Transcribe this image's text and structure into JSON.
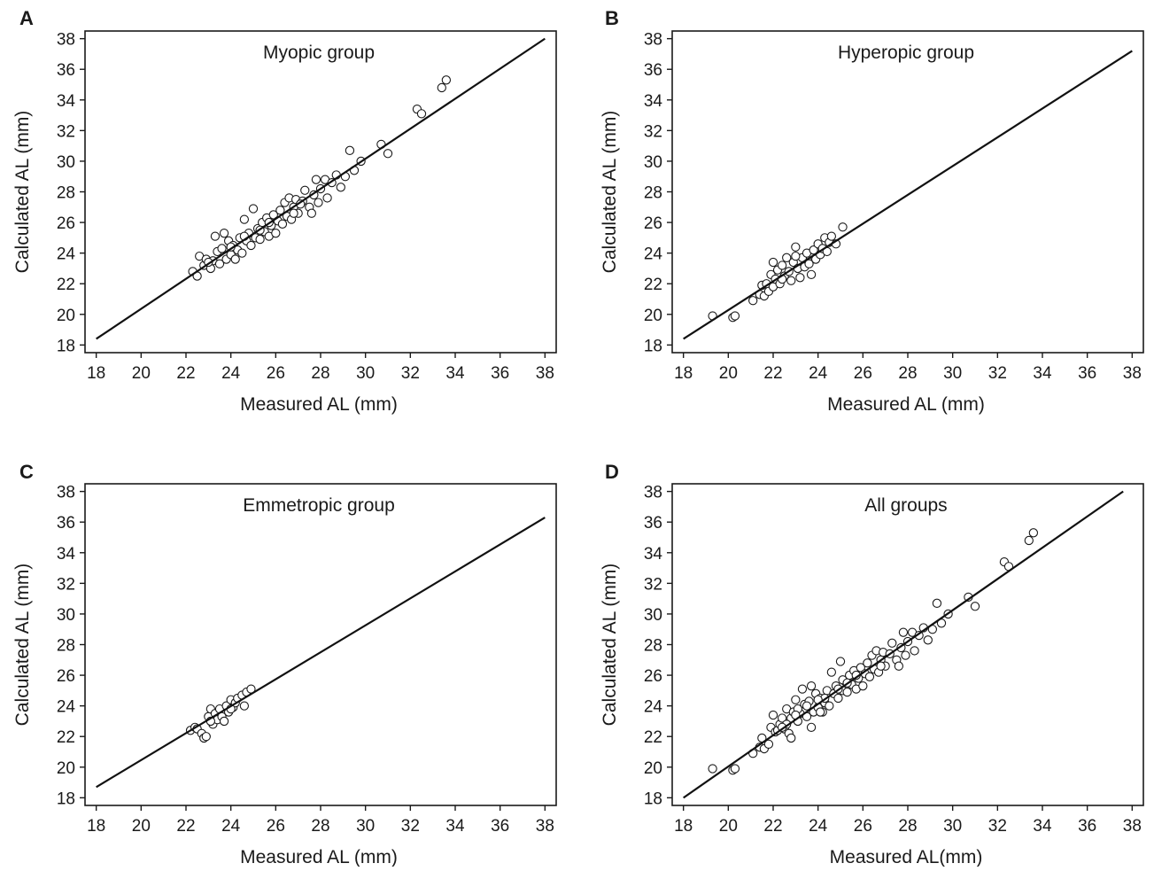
{
  "chart_data": [
    {
      "panel": "A",
      "type": "scatter",
      "title": "Myopic group",
      "xlabel": "Measured AL (mm)",
      "ylabel": "Calculated AL (mm)",
      "xlim": [
        17.5,
        38.5
      ],
      "ylim": [
        17.5,
        38.5
      ],
      "xticks": [
        "18",
        "20",
        "22",
        "24",
        "26",
        "28",
        "30",
        "32",
        "34",
        "36",
        "38"
      ],
      "yticks": [
        "18",
        "20",
        "22",
        "24",
        "26",
        "28",
        "30",
        "32",
        "34",
        "36",
        "38"
      ],
      "fit_line": [
        [
          18,
          18.4
        ],
        [
          38,
          38.0
        ]
      ],
      "points": [
        [
          22.3,
          22.8
        ],
        [
          22.5,
          22.5
        ],
        [
          22.6,
          23.8
        ],
        [
          22.8,
          23.2
        ],
        [
          22.9,
          23.6
        ],
        [
          23.1,
          23.0
        ],
        [
          23.2,
          23.5
        ],
        [
          23.3,
          25.1
        ],
        [
          23.4,
          24.1
        ],
        [
          23.5,
          23.3
        ],
        [
          23.6,
          24.3
        ],
        [
          23.7,
          25.3
        ],
        [
          23.8,
          23.6
        ],
        [
          23.9,
          24.8
        ],
        [
          24.0,
          23.9
        ],
        [
          24.1,
          24.5
        ],
        [
          24.2,
          23.6
        ],
        [
          24.3,
          24.2
        ],
        [
          24.4,
          25.0
        ],
        [
          24.5,
          24.0
        ],
        [
          24.6,
          26.2
        ],
        [
          24.7,
          24.8
        ],
        [
          24.8,
          25.3
        ],
        [
          24.9,
          24.5
        ],
        [
          25.0,
          26.9
        ],
        [
          25.1,
          25.0
        ],
        [
          25.2,
          25.6
        ],
        [
          25.3,
          24.9
        ],
        [
          25.4,
          26.0
        ],
        [
          25.5,
          25.4
        ],
        [
          25.6,
          26.3
        ],
        [
          25.7,
          25.1
        ],
        [
          25.8,
          25.8
        ],
        [
          25.9,
          26.5
        ],
        [
          26.0,
          25.3
        ],
        [
          26.1,
          26.1
        ],
        [
          26.2,
          26.8
        ],
        [
          26.3,
          25.9
        ],
        [
          26.4,
          27.3
        ],
        [
          26.5,
          26.4
        ],
        [
          26.6,
          27.6
        ],
        [
          26.7,
          26.2
        ],
        [
          26.8,
          27.0
        ],
        [
          26.9,
          27.5
        ],
        [
          27.0,
          26.6
        ],
        [
          27.2,
          27.4
        ],
        [
          27.3,
          28.1
        ],
        [
          27.5,
          27.0
        ],
        [
          27.6,
          26.6
        ],
        [
          27.7,
          27.8
        ],
        [
          27.8,
          28.8
        ],
        [
          27.9,
          27.3
        ],
        [
          28.0,
          28.2
        ],
        [
          28.2,
          28.8
        ],
        [
          28.3,
          27.6
        ],
        [
          28.5,
          28.6
        ],
        [
          28.7,
          29.1
        ],
        [
          28.9,
          28.3
        ],
        [
          29.1,
          29.0
        ],
        [
          29.3,
          30.7
        ],
        [
          29.5,
          29.4
        ],
        [
          29.8,
          30.0
        ],
        [
          30.7,
          31.1
        ],
        [
          31.0,
          30.5
        ],
        [
          32.3,
          33.4
        ],
        [
          32.5,
          33.1
        ],
        [
          33.4,
          34.8
        ],
        [
          33.6,
          35.3
        ],
        [
          24.0,
          24.4
        ],
        [
          25.7,
          26.0
        ],
        [
          26.8,
          26.6
        ],
        [
          24.6,
          25.1
        ],
        [
          23.0,
          23.4
        ],
        [
          25.3,
          25.5
        ],
        [
          27.1,
          27.2
        ]
      ]
    },
    {
      "panel": "B",
      "type": "scatter",
      "title": "Hyperopic group",
      "xlabel": "Measured AL (mm)",
      "ylabel": "Calculated AL (mm)",
      "xlim": [
        17.5,
        38.5
      ],
      "ylim": [
        17.5,
        38.5
      ],
      "xticks": [
        "18",
        "20",
        "22",
        "24",
        "26",
        "28",
        "30",
        "32",
        "34",
        "36",
        "38"
      ],
      "yticks": [
        "18",
        "20",
        "22",
        "24",
        "26",
        "28",
        "30",
        "32",
        "34",
        "36",
        "38"
      ],
      "fit_line": [
        [
          18,
          18.4
        ],
        [
          38,
          37.2
        ]
      ],
      "points": [
        [
          19.3,
          19.9
        ],
        [
          20.2,
          19.8
        ],
        [
          20.3,
          19.9
        ],
        [
          21.1,
          20.9
        ],
        [
          21.4,
          21.3
        ],
        [
          21.5,
          21.9
        ],
        [
          21.6,
          21.2
        ],
        [
          21.7,
          22.0
        ],
        [
          21.8,
          21.5
        ],
        [
          21.9,
          22.6
        ],
        [
          22.0,
          21.8
        ],
        [
          22.0,
          23.4
        ],
        [
          22.1,
          22.3
        ],
        [
          22.2,
          22.9
        ],
        [
          22.3,
          22.0
        ],
        [
          22.4,
          23.2
        ],
        [
          22.5,
          22.5
        ],
        [
          22.6,
          23.7
        ],
        [
          22.7,
          22.8
        ],
        [
          22.8,
          22.2
        ],
        [
          22.9,
          23.4
        ],
        [
          23.0,
          24.4
        ],
        [
          23.1,
          23.0
        ],
        [
          23.2,
          22.4
        ],
        [
          23.3,
          23.7
        ],
        [
          23.4,
          23.1
        ],
        [
          23.5,
          24.0
        ],
        [
          23.6,
          23.4
        ],
        [
          23.7,
          22.6
        ],
        [
          23.8,
          24.2
        ],
        [
          23.9,
          23.6
        ],
        [
          24.0,
          24.6
        ],
        [
          24.1,
          23.9
        ],
        [
          24.2,
          24.3
        ],
        [
          24.3,
          25.0
        ],
        [
          24.4,
          24.1
        ],
        [
          24.5,
          24.7
        ],
        [
          24.6,
          25.1
        ],
        [
          24.8,
          24.6
        ],
        [
          25.1,
          25.7
        ],
        [
          22.4,
          22.3
        ],
        [
          23.0,
          23.8
        ],
        [
          23.6,
          23.3
        ]
      ]
    },
    {
      "panel": "C",
      "type": "scatter",
      "title": "Emmetropic group",
      "xlabel": "Measured AL (mm)",
      "ylabel": "Calculated AL (mm)",
      "xlim": [
        17.5,
        38.5
      ],
      "ylim": [
        17.5,
        38.5
      ],
      "xticks": [
        "18",
        "20",
        "22",
        "24",
        "26",
        "28",
        "30",
        "32",
        "34",
        "36",
        "38"
      ],
      "yticks": [
        "18",
        "20",
        "22",
        "24",
        "26",
        "28",
        "30",
        "32",
        "34",
        "36",
        "38"
      ],
      "fit_line": [
        [
          18,
          18.7
        ],
        [
          38,
          36.3
        ]
      ],
      "points": [
        [
          22.2,
          22.4
        ],
        [
          22.4,
          22.6
        ],
        [
          22.5,
          22.5
        ],
        [
          22.7,
          22.2
        ],
        [
          22.8,
          21.9
        ],
        [
          22.9,
          22.0
        ],
        [
          23.0,
          23.3
        ],
        [
          23.1,
          23.8
        ],
        [
          23.2,
          22.8
        ],
        [
          23.3,
          23.5
        ],
        [
          23.4,
          23.1
        ],
        [
          23.5,
          23.8
        ],
        [
          23.6,
          23.3
        ],
        [
          23.7,
          23.0
        ],
        [
          23.8,
          24.0
        ],
        [
          23.9,
          23.6
        ],
        [
          24.0,
          24.4
        ],
        [
          24.1,
          23.9
        ],
        [
          24.2,
          24.2
        ],
        [
          24.3,
          24.5
        ],
        [
          24.5,
          24.7
        ],
        [
          24.6,
          24.0
        ],
        [
          24.7,
          24.9
        ],
        [
          24.9,
          25.1
        ],
        [
          23.1,
          23.0
        ],
        [
          24.0,
          23.8
        ]
      ]
    },
    {
      "panel": "D",
      "type": "scatter",
      "title": "All groups",
      "xlabel": "Measured AL(mm)",
      "ylabel": "Calculated AL (mm)",
      "xlim": [
        17.5,
        38.5
      ],
      "ylim": [
        17.5,
        38.5
      ],
      "xticks": [
        "18",
        "20",
        "22",
        "24",
        "26",
        "28",
        "30",
        "32",
        "34",
        "36",
        "38"
      ],
      "yticks": [
        "18",
        "20",
        "22",
        "24",
        "26",
        "28",
        "30",
        "32",
        "34",
        "36",
        "38"
      ],
      "fit_line": [
        [
          18,
          18.0
        ],
        [
          37.6,
          38.0
        ]
      ],
      "points": [
        [
          19.3,
          19.9
        ],
        [
          20.2,
          19.8
        ],
        [
          20.3,
          19.9
        ],
        [
          21.1,
          20.9
        ],
        [
          21.4,
          21.3
        ],
        [
          21.5,
          21.9
        ],
        [
          21.6,
          21.2
        ],
        [
          21.8,
          21.5
        ],
        [
          21.9,
          22.6
        ],
        [
          22.0,
          23.4
        ],
        [
          22.1,
          22.3
        ],
        [
          22.2,
          22.4
        ],
        [
          22.3,
          22.8
        ],
        [
          22.4,
          23.2
        ],
        [
          22.5,
          22.5
        ],
        [
          22.6,
          23.8
        ],
        [
          22.7,
          22.2
        ],
        [
          22.8,
          23.2
        ],
        [
          22.9,
          23.6
        ],
        [
          23.0,
          24.4
        ],
        [
          23.1,
          23.0
        ],
        [
          23.2,
          23.5
        ],
        [
          23.3,
          25.1
        ],
        [
          23.4,
          24.1
        ],
        [
          23.5,
          23.3
        ],
        [
          23.6,
          24.3
        ],
        [
          23.7,
          25.3
        ],
        [
          23.8,
          23.6
        ],
        [
          23.9,
          24.8
        ],
        [
          24.0,
          23.9
        ],
        [
          24.1,
          24.5
        ],
        [
          24.2,
          23.6
        ],
        [
          24.3,
          24.2
        ],
        [
          24.4,
          25.0
        ],
        [
          24.5,
          24.0
        ],
        [
          24.6,
          26.2
        ],
        [
          24.7,
          24.8
        ],
        [
          24.8,
          25.3
        ],
        [
          24.9,
          24.5
        ],
        [
          25.0,
          26.9
        ],
        [
          25.1,
          25.0
        ],
        [
          25.2,
          25.6
        ],
        [
          25.3,
          24.9
        ],
        [
          25.4,
          26.0
        ],
        [
          25.5,
          25.4
        ],
        [
          25.6,
          26.3
        ],
        [
          25.7,
          25.1
        ],
        [
          25.8,
          25.8
        ],
        [
          25.9,
          26.5
        ],
        [
          26.0,
          25.3
        ],
        [
          26.1,
          26.1
        ],
        [
          26.2,
          26.8
        ],
        [
          26.3,
          25.9
        ],
        [
          26.4,
          27.3
        ],
        [
          26.5,
          26.4
        ],
        [
          26.6,
          27.6
        ],
        [
          26.7,
          26.2
        ],
        [
          26.8,
          27.0
        ],
        [
          26.9,
          27.5
        ],
        [
          27.0,
          26.6
        ],
        [
          27.2,
          27.4
        ],
        [
          27.3,
          28.1
        ],
        [
          27.5,
          27.0
        ],
        [
          27.6,
          26.6
        ],
        [
          27.7,
          27.8
        ],
        [
          27.8,
          28.8
        ],
        [
          27.9,
          27.3
        ],
        [
          28.0,
          28.2
        ],
        [
          28.2,
          28.8
        ],
        [
          28.3,
          27.6
        ],
        [
          28.5,
          28.6
        ],
        [
          28.7,
          29.1
        ],
        [
          28.9,
          28.3
        ],
        [
          29.1,
          29.0
        ],
        [
          29.3,
          30.7
        ],
        [
          29.5,
          29.4
        ],
        [
          29.8,
          30.0
        ],
        [
          30.7,
          31.1
        ],
        [
          31.0,
          30.5
        ],
        [
          32.3,
          33.4
        ],
        [
          32.5,
          33.1
        ],
        [
          33.4,
          34.8
        ],
        [
          33.6,
          35.3
        ],
        [
          22.8,
          21.9
        ],
        [
          23.1,
          23.8
        ],
        [
          23.7,
          22.6
        ],
        [
          24.3,
          24.5
        ],
        [
          24.9,
          25.1
        ],
        [
          22.6,
          22.8
        ],
        [
          23.5,
          24.0
        ],
        [
          24.1,
          23.6
        ],
        [
          25.1,
          25.7
        ],
        [
          24.0,
          24.4
        ],
        [
          25.7,
          26.0
        ],
        [
          26.8,
          26.6
        ],
        [
          22.4,
          22.6
        ],
        [
          23.0,
          23.4
        ],
        [
          25.3,
          25.5
        ]
      ]
    }
  ]
}
